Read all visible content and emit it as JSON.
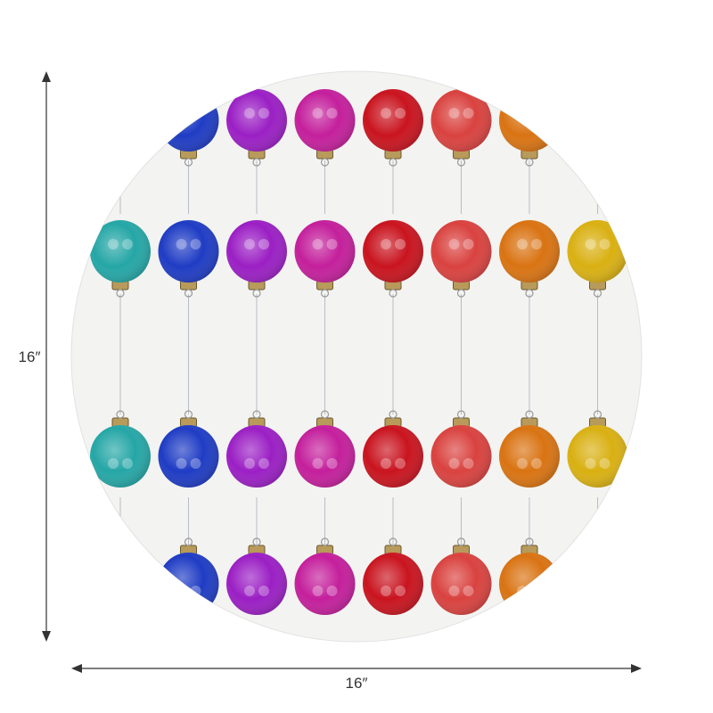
{
  "dimensions": {
    "height": "16″",
    "width": "16″"
  }
}
